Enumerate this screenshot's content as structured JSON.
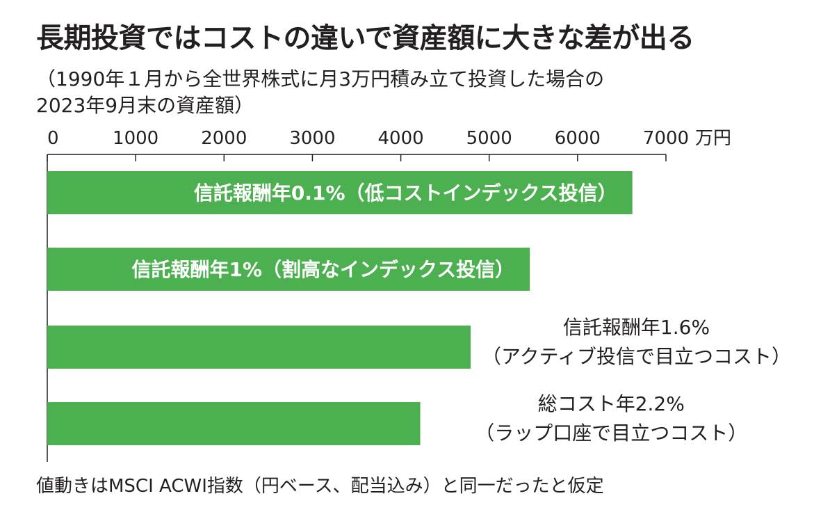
{
  "title": "長期投資ではコストの違いで資産額に大きな差が出る",
  "subtitle": [
    "（1990年１月から全世界株式に月3万円積み立て投資した場合の",
    "2023年9月末の資産額）"
  ],
  "note": "値動きはMSCI ACWI指数（円ベース、配当込み）と同一だったと仮定",
  "colors": {
    "bar": "#4caf50",
    "text": "#231f20",
    "inside_label": "#ffffff"
  },
  "chart_data": {
    "type": "bar",
    "orientation": "horizontal",
    "xunit": "万円",
    "xlim": [
      0,
      7000
    ],
    "xticks": [
      0,
      1000,
      2000,
      3000,
      4000,
      5000,
      6000,
      7000
    ],
    "categories": [
      [
        "信託報酬年0.1%（低コストインデックス投信）"
      ],
      [
        "信託報酬年1%（割高なインデックス投信）"
      ],
      [
        "信託報酬年1.6%",
        "（アクティブ投信で目立つコスト）"
      ],
      [
        "総コスト年2.2%",
        "（ラップ口座で目立つコスト）"
      ]
    ],
    "label_inside": [
      true,
      true,
      false,
      false
    ],
    "values": [
      6620,
      5460,
      4790,
      4220
    ]
  }
}
